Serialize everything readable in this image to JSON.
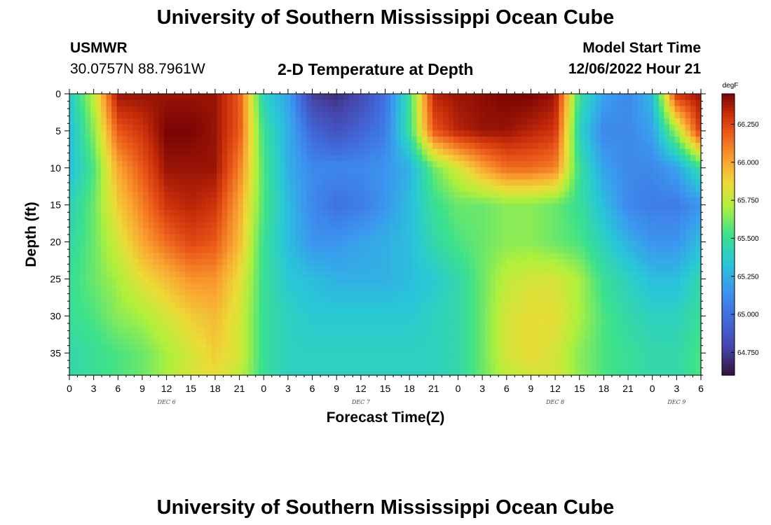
{
  "header": {
    "title": "University of Southern Mississippi Ocean Cube",
    "station": "USMWR",
    "coords": "30.0757N  88.7961W",
    "plot_title": "2-D Temperature at Depth",
    "model_label": "Model Start Time",
    "model_time": "12/06/2022 Hour 21"
  },
  "footer": {
    "title": "University of Southern Mississippi Ocean Cube"
  },
  "chart_data": {
    "type": "heatmap",
    "xlabel": "Forecast Time(Z)",
    "ylabel": "Depth (ft)",
    "x_tick_labels": [
      "0",
      "3",
      "6",
      "9",
      "12",
      "15",
      "18",
      "21",
      "0",
      "3",
      "6",
      "9",
      "12",
      "15",
      "18",
      "21",
      "0",
      "3",
      "6",
      "9",
      "12",
      "15",
      "18",
      "21",
      "0",
      "3",
      "6"
    ],
    "x_hours_range": [
      0,
      78
    ],
    "day_labels": [
      {
        "label": "DEC 6",
        "hour": 12
      },
      {
        "label": "DEC 7",
        "hour": 36
      },
      {
        "label": "DEC 8",
        "hour": 60
      },
      {
        "label": "DEC 9",
        "hour": 75
      }
    ],
    "y_ticks": [
      0,
      5,
      10,
      15,
      20,
      25,
      30,
      35
    ],
    "y_range": [
      0,
      38
    ],
    "y_inverted": true,
    "colorbar": {
      "unit": "degF",
      "range": [
        64.6,
        66.45
      ],
      "ticks": [
        64.75,
        65.0,
        65.25,
        65.5,
        65.75,
        66.0,
        66.25
      ],
      "tick_labels": [
        "64.750",
        "65.000",
        "65.250",
        "65.500",
        "65.750",
        "66.000",
        "66.250"
      ]
    },
    "field": {
      "time_hours": [
        0,
        3,
        6,
        9,
        12,
        15,
        18,
        21,
        24,
        27,
        30,
        33,
        36,
        39,
        42,
        45,
        48,
        51,
        54,
        57,
        60,
        63,
        66,
        69,
        72,
        75,
        78
      ],
      "depths_ft": [
        0,
        5,
        10,
        15,
        20,
        25,
        30,
        35,
        38
      ],
      "temperature_degF": [
        [
          65.35,
          65.75,
          66.4,
          66.4,
          66.4,
          66.4,
          66.4,
          66.2,
          65.4,
          65.2,
          64.75,
          64.7,
          64.8,
          65.0,
          65.5,
          66.35,
          66.4,
          66.42,
          66.45,
          66.45,
          66.4,
          65.5,
          65.2,
          65.1,
          65.3,
          66.3,
          66.4
        ],
        [
          65.3,
          65.65,
          66.2,
          66.3,
          66.45,
          66.45,
          66.4,
          66.2,
          65.5,
          65.25,
          64.95,
          64.85,
          64.95,
          65.05,
          65.5,
          66.2,
          66.35,
          66.4,
          66.4,
          66.35,
          66.3,
          65.4,
          65.1,
          65.1,
          65.2,
          65.7,
          66.3
        ],
        [
          65.3,
          65.55,
          66.0,
          66.2,
          66.4,
          66.4,
          66.4,
          66.1,
          65.55,
          65.25,
          65.1,
          65.1,
          65.1,
          65.15,
          65.25,
          65.6,
          65.8,
          66.0,
          66.15,
          66.15,
          66.1,
          65.5,
          65.2,
          65.1,
          65.1,
          65.2,
          65.5
        ],
        [
          65.4,
          65.6,
          65.9,
          66.1,
          66.3,
          66.35,
          66.3,
          66.0,
          65.55,
          65.3,
          65.1,
          65.0,
          65.05,
          65.15,
          65.3,
          65.5,
          65.6,
          65.6,
          65.65,
          65.65,
          65.6,
          65.5,
          65.3,
          65.1,
          65.05,
          65.05,
          65.15
        ],
        [
          65.45,
          65.6,
          65.8,
          66.0,
          66.15,
          66.25,
          66.2,
          65.95,
          65.5,
          65.3,
          65.15,
          65.15,
          65.2,
          65.25,
          65.3,
          65.45,
          65.55,
          65.6,
          65.65,
          65.65,
          65.6,
          65.55,
          65.4,
          65.25,
          65.15,
          65.15,
          65.3
        ],
        [
          65.5,
          65.6,
          65.7,
          65.85,
          65.95,
          66.05,
          66.05,
          65.85,
          65.5,
          65.35,
          65.3,
          65.25,
          65.25,
          65.25,
          65.3,
          65.35,
          65.45,
          65.6,
          65.75,
          65.8,
          65.8,
          65.7,
          65.5,
          65.4,
          65.3,
          65.3,
          65.45
        ],
        [
          65.5,
          65.55,
          65.65,
          65.7,
          65.8,
          65.9,
          65.95,
          65.8,
          65.5,
          65.4,
          65.35,
          65.35,
          65.35,
          65.35,
          65.35,
          65.4,
          65.45,
          65.6,
          65.8,
          65.85,
          65.85,
          65.7,
          65.55,
          65.45,
          65.4,
          65.4,
          65.5
        ],
        [
          65.45,
          65.5,
          65.55,
          65.6,
          65.7,
          65.8,
          65.9,
          65.8,
          65.5,
          65.4,
          65.4,
          65.4,
          65.4,
          65.4,
          65.4,
          65.4,
          65.45,
          65.6,
          65.8,
          65.85,
          65.8,
          65.65,
          65.55,
          65.5,
          65.45,
          65.45,
          65.55
        ],
        [
          65.45,
          65.5,
          65.55,
          65.6,
          65.7,
          65.8,
          65.85,
          65.75,
          65.5,
          65.4,
          65.4,
          65.4,
          65.4,
          65.4,
          65.4,
          65.4,
          65.45,
          65.6,
          65.75,
          65.8,
          65.8,
          65.65,
          65.55,
          65.5,
          65.45,
          65.45,
          65.55
        ]
      ]
    }
  }
}
